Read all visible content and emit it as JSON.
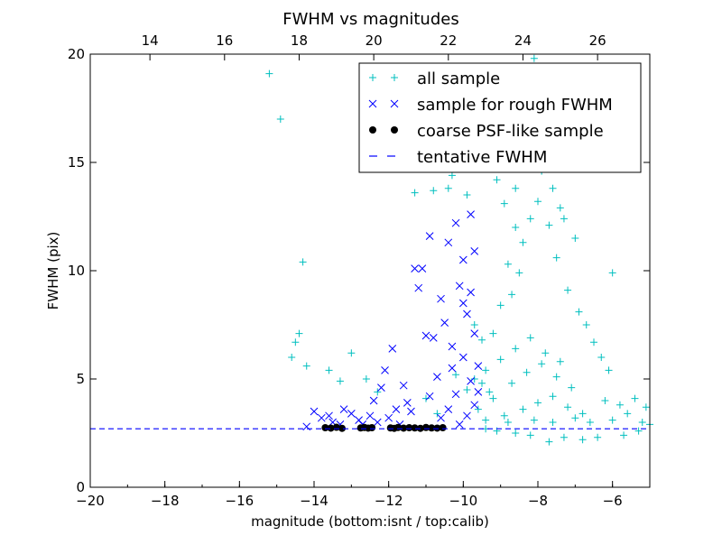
{
  "chart_data": {
    "type": "scatter",
    "title": "FWHM vs magnitudes",
    "xlabel": "magnitude (bottom:isnt / top:calib)",
    "ylabel": "FWHM (pix)",
    "xlim": [
      -20,
      -5
    ],
    "ylim": [
      0,
      20
    ],
    "top_xlim": [
      12.4,
      27.4
    ],
    "x_ticks": [
      -20,
      -18,
      -16,
      -14,
      -12,
      -10,
      -8,
      -6
    ],
    "x_tick_labels": [
      "−20",
      "−18",
      "−16",
      "−14",
      "−12",
      "−10",
      "−8",
      "−6"
    ],
    "y_ticks": [
      0,
      5,
      10,
      15,
      20
    ],
    "y_tick_labels": [
      "0",
      "5",
      "10",
      "15",
      "20"
    ],
    "top_ticks": [
      14,
      16,
      18,
      20,
      22,
      24,
      26
    ],
    "top_tick_labels": [
      "14",
      "16",
      "18",
      "20",
      "22",
      "24",
      "26"
    ],
    "legend_position": "top-right",
    "colors": {
      "all_sample": "#00bfbf",
      "rough_sample": "#0000ff",
      "psf_sample": "#000000",
      "tentative": "#0000ff"
    },
    "legend": [
      "all sample",
      "sample for rough FWHM",
      "coarse PSF-like sample",
      "tentative FWHM"
    ],
    "tentative_fwhm": 2.7,
    "series": [
      {
        "name": "all sample",
        "marker": "plus",
        "points": [
          [
            -15.2,
            19.1
          ],
          [
            -14.9,
            17.0
          ],
          [
            -14.3,
            10.4
          ],
          [
            -14.4,
            7.1
          ],
          [
            -14.5,
            6.7
          ],
          [
            -14.6,
            6.0
          ],
          [
            -14.2,
            5.6
          ],
          [
            -13.6,
            5.4
          ],
          [
            -13.3,
            4.9
          ],
          [
            -13.0,
            6.2
          ],
          [
            -12.6,
            5.0
          ],
          [
            -12.3,
            4.4
          ],
          [
            -11.0,
            4.1
          ],
          [
            -10.7,
            3.4
          ],
          [
            -10.2,
            5.2
          ],
          [
            -9.7,
            5.0
          ],
          [
            -9.4,
            5.4
          ],
          [
            -9.9,
            4.5
          ],
          [
            -9.6,
            3.6
          ],
          [
            -9.3,
            4.4
          ],
          [
            -9.5,
            6.8
          ],
          [
            -9.7,
            7.5
          ],
          [
            -9.2,
            7.1
          ],
          [
            -9.0,
            8.4
          ],
          [
            -8.7,
            8.9
          ],
          [
            -8.5,
            9.9
          ],
          [
            -8.8,
            10.3
          ],
          [
            -8.4,
            11.3
          ],
          [
            -8.2,
            12.4
          ],
          [
            -8.6,
            12.0
          ],
          [
            -8.0,
            13.2
          ],
          [
            -7.9,
            14.6
          ],
          [
            -8.3,
            15.0
          ],
          [
            -7.6,
            13.8
          ],
          [
            -7.3,
            12.4
          ],
          [
            -7.5,
            10.6
          ],
          [
            -7.0,
            11.5
          ],
          [
            -7.2,
            9.1
          ],
          [
            -6.9,
            8.1
          ],
          [
            -6.7,
            7.5
          ],
          [
            -6.5,
            6.7
          ],
          [
            -6.3,
            6.0
          ],
          [
            -6.1,
            5.4
          ],
          [
            -6.0,
            9.9
          ],
          [
            -8.1,
            19.8
          ],
          [
            -8.5,
            18.6
          ],
          [
            -7.8,
            18.4
          ],
          [
            -9.6,
            16.8
          ],
          [
            -9.3,
            15.9
          ],
          [
            -9.0,
            16.5
          ],
          [
            -10.3,
            14.4
          ],
          [
            -11.3,
            13.6
          ],
          [
            -10.8,
            13.7
          ],
          [
            -10.4,
            13.8
          ],
          [
            -9.9,
            13.5
          ],
          [
            -9.1,
            14.2
          ],
          [
            -8.9,
            13.1
          ],
          [
            -8.6,
            13.8
          ],
          [
            -7.7,
            12.1
          ],
          [
            -7.4,
            12.9
          ],
          [
            -6.2,
            4.0
          ],
          [
            -6.0,
            3.1
          ],
          [
            -5.8,
            3.8
          ],
          [
            -5.6,
            3.4
          ],
          [
            -5.4,
            4.1
          ],
          [
            -5.2,
            3.0
          ],
          [
            -5.1,
            3.7
          ],
          [
            -5.0,
            2.9
          ],
          [
            -5.3,
            2.6
          ],
          [
            -5.7,
            2.4
          ],
          [
            -6.4,
            2.3
          ],
          [
            -6.8,
            2.2
          ],
          [
            -7.3,
            2.3
          ],
          [
            -7.7,
            2.1
          ],
          [
            -8.2,
            2.4
          ],
          [
            -8.6,
            2.5
          ],
          [
            -9.1,
            2.6
          ],
          [
            -9.4,
            2.7
          ],
          [
            -8.9,
            3.3
          ],
          [
            -8.4,
            3.6
          ],
          [
            -8.0,
            3.9
          ],
          [
            -7.6,
            4.2
          ],
          [
            -7.2,
            3.7
          ],
          [
            -6.8,
            3.4
          ],
          [
            -8.7,
            4.8
          ],
          [
            -8.3,
            5.3
          ],
          [
            -7.9,
            5.7
          ],
          [
            -7.5,
            5.1
          ],
          [
            -7.1,
            4.6
          ],
          [
            -9.0,
            5.9
          ],
          [
            -8.6,
            6.4
          ],
          [
            -8.2,
            6.9
          ],
          [
            -7.8,
            6.2
          ],
          [
            -7.4,
            5.8
          ],
          [
            -9.2,
            4.1
          ],
          [
            -8.8,
            3.0
          ],
          [
            -8.1,
            3.1
          ],
          [
            -7.6,
            3.0
          ],
          [
            -7.0,
            3.2
          ],
          [
            -6.6,
            3.0
          ],
          [
            -9.4,
            3.1
          ],
          [
            -9.5,
            4.8
          ]
        ]
      },
      {
        "name": "sample for rough FWHM",
        "marker": "x",
        "points": [
          [
            -14.0,
            3.5
          ],
          [
            -13.8,
            3.2
          ],
          [
            -13.5,
            3.0
          ],
          [
            -14.2,
            2.8
          ],
          [
            -13.2,
            3.6
          ],
          [
            -12.8,
            3.1
          ],
          [
            -12.4,
            4.0
          ],
          [
            -12.1,
            5.4
          ],
          [
            -11.9,
            6.4
          ],
          [
            -12.5,
            3.3
          ],
          [
            -11.6,
            4.7
          ],
          [
            -11.4,
            3.5
          ],
          [
            -11.2,
            9.2
          ],
          [
            -11.1,
            10.1
          ],
          [
            -10.9,
            11.6
          ],
          [
            -11.3,
            10.1
          ],
          [
            -11.0,
            7.0
          ],
          [
            -10.8,
            6.9
          ],
          [
            -10.6,
            8.7
          ],
          [
            -10.4,
            11.3
          ],
          [
            -10.2,
            12.2
          ],
          [
            -10.0,
            10.5
          ],
          [
            -9.9,
            8.0
          ],
          [
            -9.8,
            12.6
          ],
          [
            -9.7,
            7.1
          ],
          [
            -10.1,
            9.3
          ],
          [
            -10.3,
            6.5
          ],
          [
            -10.5,
            7.6
          ],
          [
            -10.7,
            5.1
          ],
          [
            -10.9,
            4.2
          ],
          [
            -11.5,
            3.9
          ],
          [
            -11.7,
            2.9
          ],
          [
            -12.0,
            3.2
          ],
          [
            -12.2,
            4.6
          ],
          [
            -12.7,
            2.9
          ],
          [
            -13.0,
            3.4
          ],
          [
            -13.3,
            2.9
          ],
          [
            -9.6,
            5.6
          ],
          [
            -9.8,
            4.9
          ],
          [
            -10.0,
            6.0
          ],
          [
            -10.2,
            4.3
          ],
          [
            -10.4,
            3.6
          ],
          [
            -10.6,
            3.2
          ],
          [
            -9.7,
            3.8
          ],
          [
            -9.9,
            3.3
          ],
          [
            -10.1,
            2.9
          ],
          [
            -9.6,
            4.4
          ],
          [
            -9.8,
            9.0
          ],
          [
            -10.0,
            8.5
          ],
          [
            -9.7,
            10.9
          ],
          [
            -10.3,
            5.5
          ],
          [
            -11.8,
            3.6
          ],
          [
            -12.3,
            3.0
          ],
          [
            -13.6,
            3.3
          ]
        ]
      },
      {
        "name": "coarse PSF-like sample",
        "marker": "dot",
        "points": [
          [
            -13.7,
            2.75
          ],
          [
            -13.55,
            2.73
          ],
          [
            -13.4,
            2.77
          ],
          [
            -13.25,
            2.72
          ],
          [
            -12.75,
            2.74
          ],
          [
            -12.65,
            2.76
          ],
          [
            -12.55,
            2.73
          ],
          [
            -12.45,
            2.75
          ],
          [
            -11.95,
            2.74
          ],
          [
            -11.85,
            2.72
          ],
          [
            -11.75,
            2.76
          ],
          [
            -11.6,
            2.73
          ],
          [
            -11.45,
            2.75
          ],
          [
            -11.3,
            2.74
          ],
          [
            -11.15,
            2.72
          ],
          [
            -11.0,
            2.76
          ],
          [
            -10.85,
            2.74
          ],
          [
            -10.7,
            2.73
          ],
          [
            -10.55,
            2.75
          ]
        ]
      }
    ]
  }
}
